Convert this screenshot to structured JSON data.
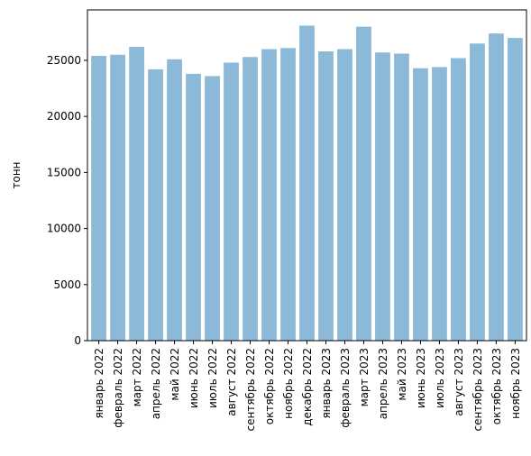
{
  "chart_data": {
    "type": "bar",
    "title": "",
    "xlabel": "",
    "ylabel": "тонн",
    "ylim": [
      0,
      29500
    ],
    "yticks": [
      0,
      5000,
      10000,
      15000,
      20000,
      25000
    ],
    "grid": false,
    "bar_color": "#8db9d9",
    "categories": [
      "январь 2022",
      "февраль 2022",
      "март 2022",
      "апрель 2022",
      "май 2022",
      "июнь 2022",
      "июль 2022",
      "август 2022",
      "сентябрь 2022",
      "октябрь 2022",
      "ноябрь 2022",
      "декабрь 2022",
      "январь 2023",
      "февраль 2023",
      "март 2023",
      "апрель 2023",
      "май 2023",
      "июнь 2023",
      "июль 2023",
      "август 2023",
      "сентябрь 2023",
      "октябрь 2023",
      "ноябрь 2023"
    ],
    "values": [
      25400,
      25500,
      26200,
      24200,
      25100,
      23800,
      23600,
      24800,
      25300,
      26000,
      26100,
      28100,
      25800,
      26000,
      28000,
      25700,
      25600,
      24300,
      24400,
      25200,
      26500,
      27400,
      27000
    ]
  }
}
